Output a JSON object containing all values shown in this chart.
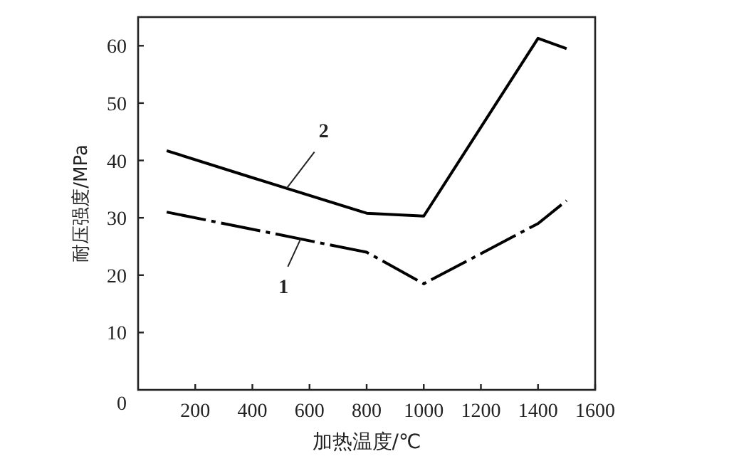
{
  "chart_data": {
    "type": "line",
    "xlabel": "加热温度/℃",
    "ylabel": "耐压强度/MPa",
    "xlim": [
      0,
      1600
    ],
    "ylim": [
      0,
      65
    ],
    "xticks": [
      200,
      400,
      600,
      800,
      1000,
      1200,
      1400,
      1600
    ],
    "yticks": [
      0,
      10,
      20,
      30,
      40,
      50,
      60
    ],
    "grid": false,
    "marker": "none",
    "series": [
      {
        "name": "1",
        "color": "#000000",
        "line_style": "dashed",
        "x": [
          100,
          800,
          1000,
          1400,
          1500
        ],
        "values": [
          31,
          24,
          18.5,
          29,
          33
        ]
      },
      {
        "name": "2",
        "color": "#000000",
        "line_style": "solid",
        "x": [
          100,
          400,
          800,
          1000,
          1400,
          1500
        ],
        "values": [
          41.7,
          37,
          30.8,
          30.3,
          61.3,
          59.5
        ]
      }
    ]
  }
}
